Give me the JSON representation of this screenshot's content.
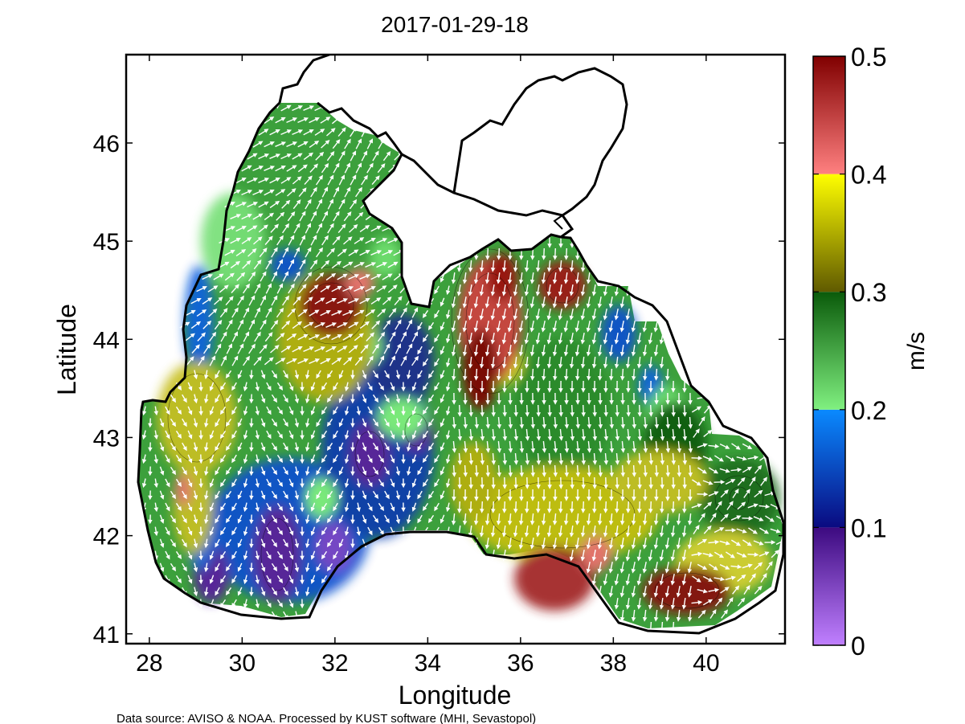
{
  "title": "2017-01-29-18",
  "map": {
    "xlabel": "Longitude",
    "ylabel": "Latitude",
    "xlim": [
      27.5,
      41.7
    ],
    "ylim": [
      40.9,
      46.9
    ],
    "xticks": [
      "28",
      "30",
      "32",
      "34",
      "36",
      "38",
      "40"
    ],
    "yticks": [
      "41",
      "42",
      "43",
      "44",
      "45",
      "46"
    ],
    "variable": "surface current speed"
  },
  "colorbar": {
    "unit": "m/s",
    "min": 0,
    "max": 0.5,
    "ticks": [
      "0",
      "0.1",
      "0.2",
      "0.3",
      "0.4",
      "0.5"
    ],
    "bands": [
      {
        "from": 0.0,
        "to": 0.1,
        "light": "#c080ff",
        "dark": "#3c0a80"
      },
      {
        "from": 0.1,
        "to": 0.2,
        "light": "#0a0a80",
        "dark": "#0a8aff"
      },
      {
        "from": 0.2,
        "to": 0.3,
        "light": "#80f080",
        "dark": "#0a5a0a"
      },
      {
        "from": 0.3,
        "to": 0.4,
        "light": "#605a00",
        "dark": "#ffff00"
      },
      {
        "from": 0.4,
        "to": 0.5,
        "light": "#ff8080",
        "dark": "#800000"
      }
    ]
  },
  "footer": "Data source: AVISO & NOAA. Processed by KUST software (MHI, Sevastopol)"
}
